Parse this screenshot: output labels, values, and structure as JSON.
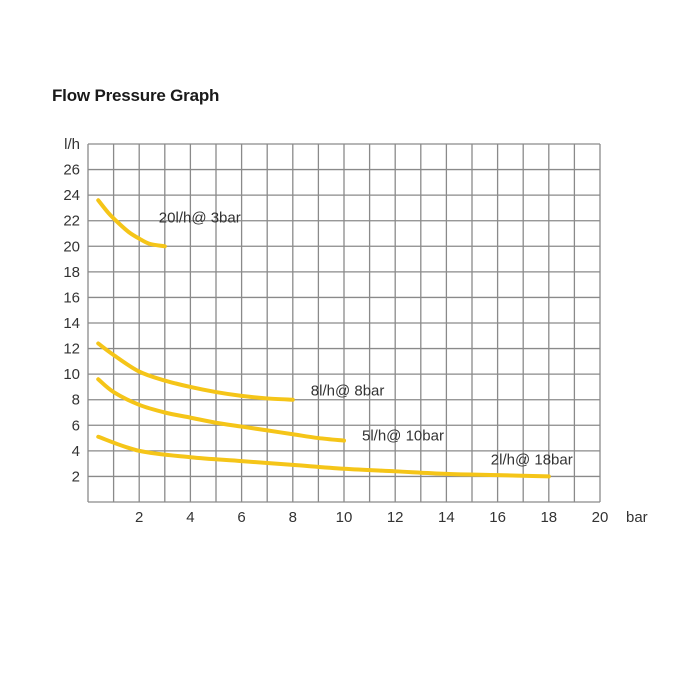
{
  "chart_data": {
    "type": "line",
    "title": "Flow Pressure Graph",
    "xlabel": "bar",
    "ylabel": "l/h",
    "xlim": [
      0,
      20
    ],
    "ylim": [
      0,
      28
    ],
    "x_ticks": [
      2,
      4,
      6,
      8,
      10,
      12,
      14,
      16,
      18,
      20
    ],
    "y_ticks": [
      2,
      4,
      6,
      8,
      10,
      12,
      14,
      16,
      18,
      20,
      22,
      24,
      26
    ],
    "grid": true,
    "colors": {
      "curve": "#f5c518",
      "grid": "#8a8a8a",
      "text": "#333333"
    },
    "series": [
      {
        "name": "20l/h@ 3bar",
        "x": [
          0.4,
          0.8,
          1.2,
          1.6,
          2.0,
          2.4,
          3.0
        ],
        "y": [
          23.6,
          22.6,
          21.8,
          21.1,
          20.6,
          20.2,
          20.0
        ]
      },
      {
        "name": "8l/h@ 8bar",
        "x": [
          0.4,
          1.0,
          2.0,
          3.0,
          4.0,
          5.0,
          6.0,
          7.0,
          8.0
        ],
        "y": [
          12.4,
          11.5,
          10.2,
          9.5,
          9.0,
          8.6,
          8.3,
          8.1,
          8.0
        ]
      },
      {
        "name": "5l/h@ 10bar",
        "x": [
          0.4,
          1.0,
          2.0,
          3.0,
          4.0,
          5.0,
          6.0,
          7.0,
          8.0,
          9.0,
          10.0
        ],
        "y": [
          9.6,
          8.6,
          7.6,
          7.0,
          6.6,
          6.2,
          5.9,
          5.6,
          5.3,
          5.0,
          4.8
        ]
      },
      {
        "name": "2l/h@ 18bar",
        "x": [
          0.4,
          2.0,
          4.0,
          6.0,
          8.0,
          10.0,
          12.0,
          14.0,
          16.0,
          18.0
        ],
        "y": [
          5.1,
          4.0,
          3.5,
          3.2,
          2.9,
          2.6,
          2.4,
          2.2,
          2.1,
          2.0
        ]
      }
    ]
  }
}
